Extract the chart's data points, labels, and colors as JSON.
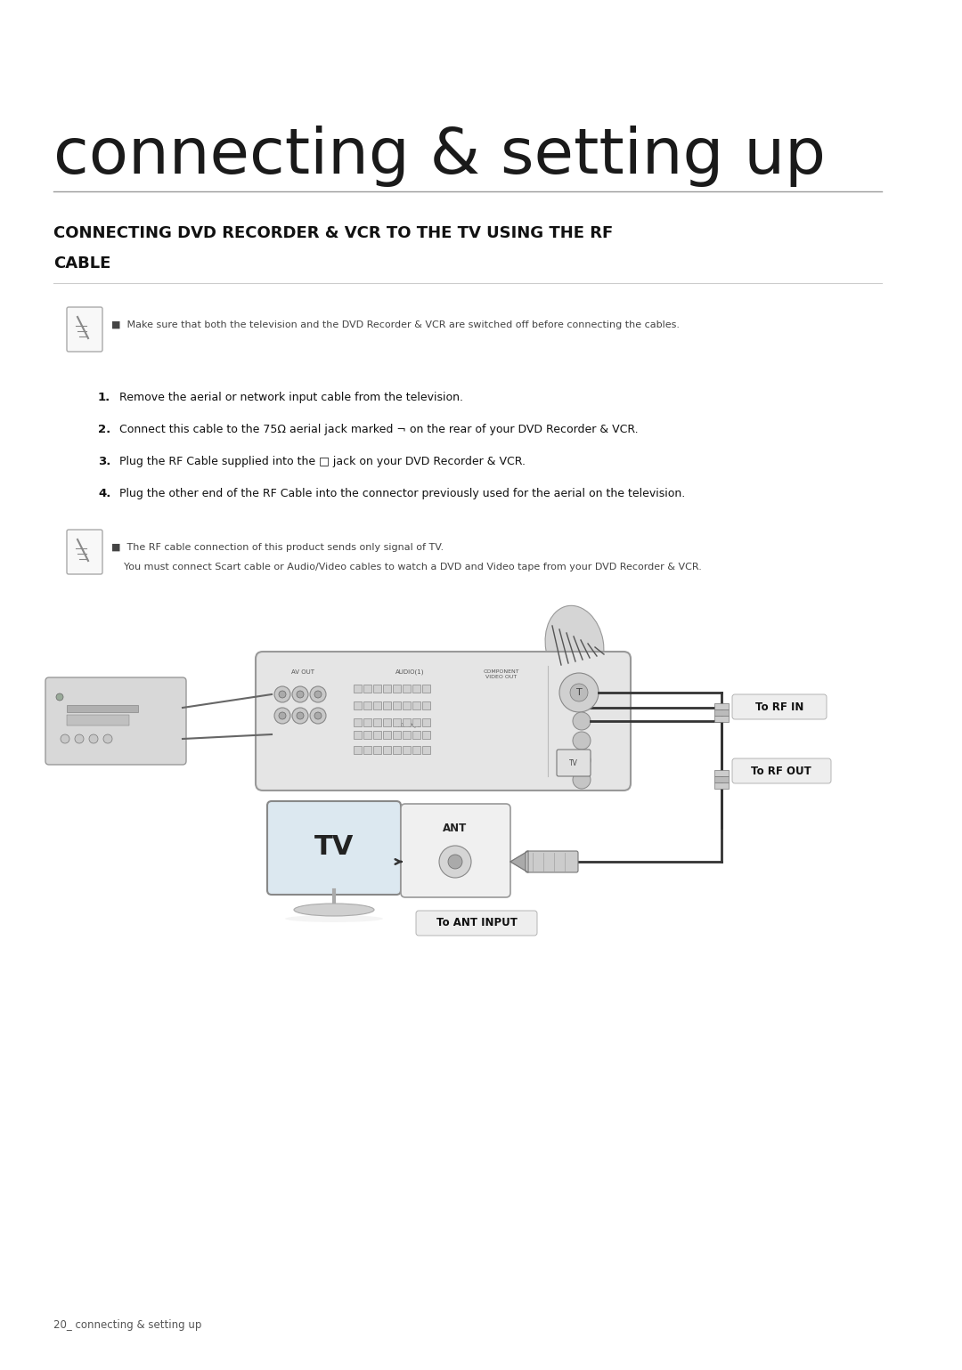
{
  "bg_color": "#ffffff",
  "page_width": 10.8,
  "page_height": 15.39,
  "title_script": "connecting & setting up",
  "section_title_line1": "CONNECTING DVD RECORDER & VCR TO THE TV USING THE RF",
  "section_title_line2": "CABLE",
  "note1": "Make sure that both the television and the DVD Recorder & VCR are switched off before connecting the cables.",
  "steps": [
    {
      "num": "1.",
      "bold": false,
      "text": " Remove the aerial or network input cable from the television."
    },
    {
      "num": "2.",
      "bold": true,
      "text": " Connect this cable to the 75Ω aerial jack marked ¬ on the rear of your DVD Recorder & VCR."
    },
    {
      "num": "3.",
      "bold": false,
      "text": " Plug the RF Cable supplied into the □ jack on your DVD Recorder & VCR."
    },
    {
      "num": "4.",
      "bold": false,
      "text": " Plug the other end of the RF Cable into the connector previously used for the aerial on the television."
    }
  ],
  "note2_line1": "The RF cable connection of this product sends only signal of TV.",
  "note2_line2": "You must connect Scart cable or Audio/Video cables to watch a DVD and Video tape from your DVD Recorder & VCR.",
  "label_rf_in": "To RF IN",
  "label_rf_out": "To RF OUT",
  "label_ant_input": "To ANT INPUT",
  "footer_text": "20_ connecting & setting up"
}
